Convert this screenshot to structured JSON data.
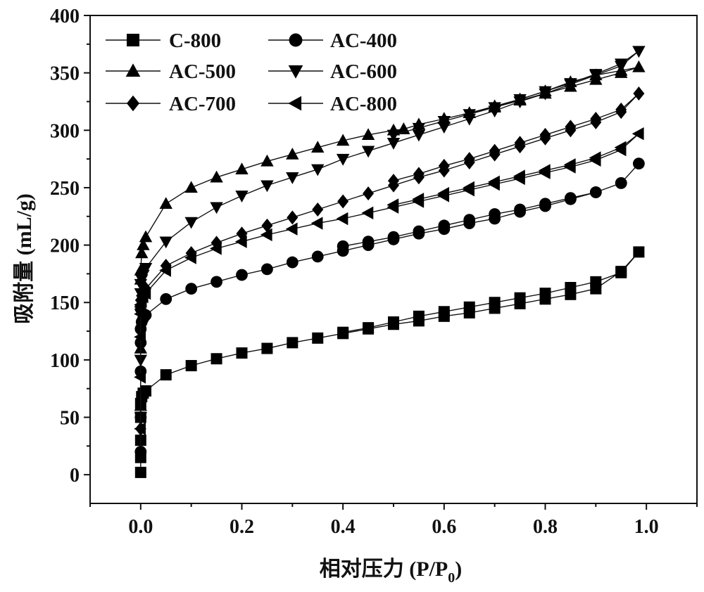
{
  "chart_data": {
    "type": "line",
    "title": "",
    "xlabel": "相对压力 (P/P",
    "xlabel_sub": "0",
    "xlabel_close": ")",
    "ylabel": "吸附量 (mL/g)",
    "xlim": [
      -0.1,
      1.1
    ],
    "ylim": [
      -25,
      400
    ],
    "xticks": [
      0.0,
      0.2,
      0.4,
      0.6,
      0.8,
      1.0
    ],
    "xtick_labels": [
      "0.0",
      "0.2",
      "0.4",
      "0.6",
      "0.8",
      "1.0"
    ],
    "yticks": [
      0,
      50,
      100,
      150,
      200,
      250,
      300,
      350,
      400
    ],
    "ytick_labels": [
      "0",
      "50",
      "100",
      "150",
      "200",
      "250",
      "300",
      "350",
      "400"
    ],
    "grid": false,
    "legend_position": "top-left",
    "colors": {
      "line": "#111111",
      "marker": "#000000",
      "axis": "#111111"
    },
    "series": [
      {
        "name": "C-800",
        "marker": "square",
        "x": [
          0.0,
          0.0,
          0.0,
          0.0,
          0.0,
          0.002,
          0.005,
          0.01,
          0.05,
          0.1,
          0.15,
          0.2,
          0.25,
          0.3,
          0.35,
          0.4,
          0.45,
          0.5,
          0.55,
          0.6,
          0.65,
          0.7,
          0.75,
          0.8,
          0.85,
          0.9,
          0.95,
          0.985,
          0.95,
          0.9,
          0.85,
          0.8,
          0.75,
          0.7,
          0.65,
          0.6,
          0.55,
          0.5,
          0.45,
          0.4
        ],
        "y": [
          2,
          15,
          30,
          50,
          62,
          68,
          71,
          73,
          87,
          95,
          101,
          106,
          110,
          115,
          119,
          123,
          127,
          131,
          134,
          138,
          141,
          145,
          149,
          153,
          157,
          162,
          177,
          194,
          176,
          168,
          163,
          158,
          154,
          150,
          146,
          142,
          138,
          133,
          128,
          124
        ]
      },
      {
        "name": "AC-400",
        "marker": "circle",
        "x": [
          0.0,
          0.0,
          0.0,
          0.0,
          0.0,
          0.002,
          0.005,
          0.01,
          0.05,
          0.1,
          0.15,
          0.2,
          0.25,
          0.3,
          0.35,
          0.4,
          0.45,
          0.5,
          0.55,
          0.6,
          0.65,
          0.7,
          0.75,
          0.8,
          0.85,
          0.9,
          0.95,
          0.985,
          0.95,
          0.9,
          0.85,
          0.8,
          0.75,
          0.7,
          0.65,
          0.6,
          0.55,
          0.5,
          0.45,
          0.4
        ],
        "y": [
          20,
          50,
          90,
          115,
          127,
          133,
          136,
          139,
          153,
          162,
          168,
          174,
          179,
          185,
          190,
          195,
          200,
          205,
          210,
          214,
          219,
          223,
          229,
          234,
          240,
          246,
          254,
          271,
          254,
          246,
          241,
          236,
          231,
          227,
          222,
          217,
          212,
          207,
          203,
          199
        ]
      },
      {
        "name": "AC-500",
        "marker": "triangle-up",
        "x": [
          0.0,
          0.0,
          0.0,
          0.0,
          0.0,
          0.002,
          0.005,
          0.01,
          0.05,
          0.1,
          0.15,
          0.2,
          0.25,
          0.3,
          0.35,
          0.4,
          0.45,
          0.5,
          0.52,
          0.55,
          0.6,
          0.65,
          0.7,
          0.75,
          0.8,
          0.85,
          0.9,
          0.95,
          0.985,
          0.95,
          0.9,
          0.85,
          0.8,
          0.75,
          0.7,
          0.65,
          0.6,
          0.55
        ],
        "y": [
          60,
          110,
          150,
          170,
          178,
          193,
          200,
          207,
          236,
          250,
          259,
          266,
          273,
          279,
          285,
          291,
          296,
          300,
          301,
          305,
          310,
          315,
          320,
          326,
          332,
          338,
          344,
          350,
          355,
          352,
          348,
          342,
          334,
          327,
          321,
          315,
          310,
          305
        ]
      },
      {
        "name": "AC-600",
        "marker": "triangle-down",
        "x": [
          0.0,
          0.0,
          0.0,
          0.0,
          0.0,
          0.002,
          0.005,
          0.01,
          0.05,
          0.1,
          0.15,
          0.2,
          0.25,
          0.3,
          0.35,
          0.4,
          0.45,
          0.5,
          0.55,
          0.6,
          0.65,
          0.7,
          0.75,
          0.8,
          0.85,
          0.9,
          0.95,
          0.985,
          0.95,
          0.9,
          0.85,
          0.8,
          0.75,
          0.7,
          0.65,
          0.6,
          0.55,
          0.5
        ],
        "y": [
          50,
          100,
          140,
          158,
          166,
          170,
          174,
          180,
          203,
          220,
          233,
          243,
          252,
          259,
          266,
          275,
          282,
          289,
          296,
          303,
          310,
          317,
          325,
          332,
          340,
          348,
          356,
          369,
          358,
          349,
          341,
          334,
          327,
          320,
          314,
          308,
          302,
          296
        ]
      },
      {
        "name": "AC-700",
        "marker": "diamond",
        "x": [
          0.0,
          0.0,
          0.0,
          0.0,
          0.0,
          0.002,
          0.005,
          0.01,
          0.05,
          0.1,
          0.15,
          0.2,
          0.25,
          0.3,
          0.35,
          0.4,
          0.45,
          0.5,
          0.55,
          0.6,
          0.65,
          0.7,
          0.75,
          0.8,
          0.85,
          0.9,
          0.95,
          0.985,
          0.95,
          0.9,
          0.85,
          0.8,
          0.75,
          0.7,
          0.65,
          0.6,
          0.55,
          0.5
        ],
        "y": [
          40,
          90,
          125,
          145,
          152,
          156,
          159,
          162,
          182,
          193,
          202,
          210,
          217,
          224,
          231,
          238,
          245,
          252,
          259,
          265,
          272,
          279,
          286,
          293,
          300,
          307,
          316,
          332,
          318,
          310,
          303,
          296,
          289,
          282,
          275,
          269,
          262,
          256
        ]
      },
      {
        "name": "AC-800",
        "marker": "triangle-left",
        "x": [
          0.0,
          0.0,
          0.0,
          0.0,
          0.0,
          0.002,
          0.005,
          0.01,
          0.05,
          0.1,
          0.15,
          0.2,
          0.25,
          0.3,
          0.35,
          0.4,
          0.45,
          0.5,
          0.55,
          0.6,
          0.65,
          0.7,
          0.75,
          0.8,
          0.85,
          0.9,
          0.95,
          0.985,
          0.95,
          0.9,
          0.85,
          0.8,
          0.75,
          0.7,
          0.65,
          0.6,
          0.55,
          0.5
        ],
        "y": [
          40,
          85,
          120,
          140,
          148,
          152,
          155,
          158,
          178,
          189,
          197,
          203,
          209,
          214,
          219,
          223,
          228,
          233,
          238,
          243,
          248,
          253,
          258,
          263,
          268,
          274,
          283,
          297,
          285,
          276,
          270,
          265,
          260,
          255,
          250,
          245,
          240,
          235
        ]
      }
    ]
  }
}
